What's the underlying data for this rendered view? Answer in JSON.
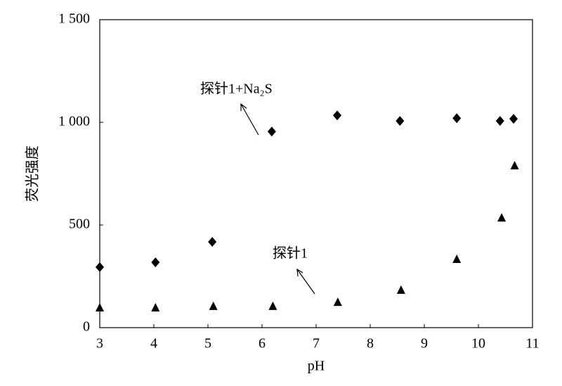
{
  "chart_data": {
    "type": "scatter",
    "xlabel": "pH",
    "ylabel": "荧光强度",
    "xlim": [
      3,
      11
    ],
    "xticks": [
      3,
      4,
      5,
      6,
      7,
      8,
      9,
      10,
      11
    ],
    "ylim": [
      0,
      1500
    ],
    "yticks": [
      0,
      500,
      {
        "value": 1000,
        "label": "1 000"
      },
      {
        "value": 1500,
        "label": "1 500"
      }
    ],
    "grid": false,
    "series": [
      {
        "name": "探针1+Na₂S",
        "color": "#000000",
        "marker": "diamond",
        "x": [
          3.0,
          4.03,
          5.08,
          6.18,
          7.39,
          8.55,
          9.6,
          10.4,
          10.65
        ],
        "values": [
          295,
          318,
          418,
          955,
          1034,
          1007,
          1020,
          1007,
          1017
        ]
      },
      {
        "name": "探针1",
        "color": "#000000",
        "marker": "triangle",
        "x": [
          3.0,
          4.03,
          5.1,
          6.2,
          7.4,
          8.57,
          9.6,
          10.43,
          10.67
        ],
        "values": [
          96,
          96,
          103,
          103,
          123,
          182,
          332,
          534,
          788
        ]
      }
    ]
  }
}
